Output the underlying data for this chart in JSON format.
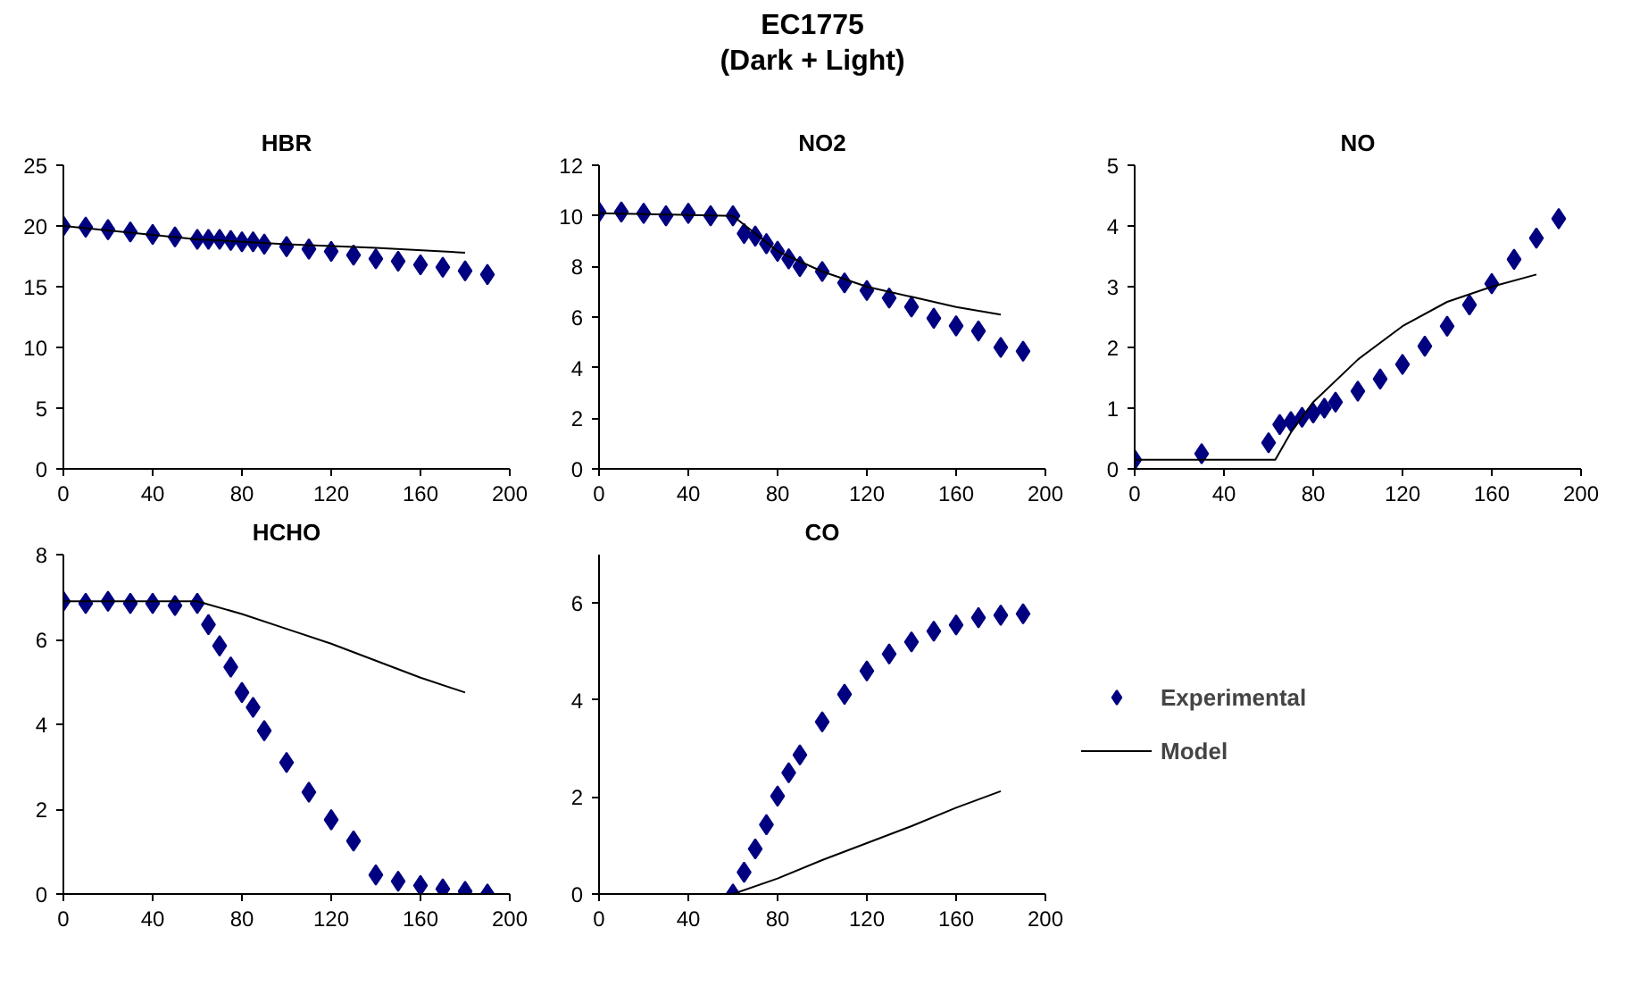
{
  "chart_data": [
    {
      "type": "other",
      "title": "EC1775\n(Dark + Light)"
    },
    {
      "type": "scatter",
      "title": "HBR",
      "xlim": [
        0,
        200
      ],
      "xticks": [
        0,
        40,
        80,
        120,
        160,
        200
      ],
      "ylim": [
        0,
        25
      ],
      "yticks": [
        0,
        5,
        10,
        15,
        20,
        25
      ],
      "grid": false,
      "series": [
        {
          "marker": "diamond",
          "color": "#000080",
          "x": [
            0,
            10,
            20,
            30,
            40,
            50,
            60,
            65,
            70,
            75,
            80,
            85,
            90,
            100,
            110,
            120,
            130,
            140,
            150,
            160,
            170,
            180,
            190
          ],
          "values": [
            20,
            19.9,
            19.7,
            19.5,
            19.3,
            19.1,
            18.9,
            18.9,
            18.9,
            18.8,
            18.7,
            18.7,
            18.5,
            18.3,
            18.1,
            17.9,
            17.6,
            17.3,
            17.1,
            16.8,
            16.6,
            16.3,
            16.0
          ]
        },
        {
          "type": "line",
          "color": "#000000",
          "line_style": "solid",
          "x": [
            0,
            60,
            100,
            140,
            180
          ],
          "values": [
            20,
            18.9,
            18.5,
            18.2,
            17.8
          ]
        }
      ]
    },
    {
      "type": "scatter",
      "title": "NO2",
      "xlim": [
        0,
        200
      ],
      "xticks": [
        0,
        40,
        80,
        120,
        160,
        200
      ],
      "ylim": [
        0,
        12
      ],
      "yticks": [
        0,
        2,
        4,
        6,
        8,
        10,
        12
      ],
      "grid": false,
      "series": [
        {
          "marker": "diamond",
          "color": "#000080",
          "x": [
            0,
            10,
            20,
            30,
            40,
            50,
            60,
            65,
            70,
            75,
            80,
            85,
            90,
            100,
            110,
            120,
            130,
            140,
            150,
            160,
            170,
            180,
            190
          ],
          "values": [
            10.15,
            10.15,
            10.1,
            10.0,
            10.1,
            10.0,
            10.0,
            9.3,
            9.2,
            8.9,
            8.6,
            8.3,
            8.0,
            7.8,
            7.35,
            7.05,
            6.75,
            6.4,
            5.95,
            5.65,
            5.45,
            4.8,
            4.65
          ]
        },
        {
          "type": "line",
          "color": "#000000",
          "line_style": "solid",
          "x": [
            0,
            60,
            80,
            100,
            120,
            140,
            160,
            180
          ],
          "values": [
            10.1,
            10.0,
            8.6,
            7.8,
            7.2,
            6.8,
            6.4,
            6.1
          ]
        }
      ]
    },
    {
      "type": "scatter",
      "title": "NO",
      "xlim": [
        0,
        200
      ],
      "xticks": [
        0,
        40,
        80,
        120,
        160,
        200
      ],
      "ylim": [
        0,
        5
      ],
      "yticks": [
        0,
        1,
        2,
        3,
        4,
        5
      ],
      "grid": false,
      "series": [
        {
          "marker": "diamond",
          "color": "#000080",
          "x": [
            0,
            30,
            60,
            65,
            70,
            75,
            80,
            85,
            90,
            100,
            110,
            120,
            130,
            140,
            150,
            160,
            170,
            180,
            190
          ],
          "values": [
            0.15,
            0.25,
            0.43,
            0.73,
            0.78,
            0.85,
            0.92,
            1.0,
            1.1,
            1.28,
            1.48,
            1.72,
            2.02,
            2.35,
            2.7,
            3.05,
            3.45,
            3.8,
            4.12
          ]
        },
        {
          "type": "line",
          "color": "#000000",
          "line_style": "solid",
          "x": [
            0,
            63,
            70,
            80,
            100,
            120,
            140,
            160,
            180
          ],
          "values": [
            0.15,
            0.15,
            0.6,
            1.1,
            1.8,
            2.35,
            2.75,
            3.0,
            3.2
          ]
        }
      ]
    },
    {
      "type": "scatter",
      "title": "HCHO",
      "xlim": [
        0,
        200
      ],
      "xticks": [
        0,
        40,
        80,
        120,
        160,
        200
      ],
      "ylim": [
        0,
        8
      ],
      "yticks": [
        0,
        2,
        4,
        6,
        8
      ],
      "grid": false,
      "series": [
        {
          "marker": "diamond",
          "color": "#000080",
          "x": [
            0,
            10,
            20,
            30,
            40,
            50,
            60,
            65,
            70,
            75,
            80,
            85,
            90,
            100,
            110,
            120,
            130,
            140,
            150,
            160,
            170,
            180,
            190
          ],
          "values": [
            6.9,
            6.85,
            6.9,
            6.85,
            6.85,
            6.8,
            6.85,
            6.35,
            5.85,
            5.35,
            4.75,
            4.4,
            3.85,
            3.1,
            2.4,
            1.75,
            1.25,
            0.45,
            0.3,
            0.2,
            0.12,
            0.06,
            0.0
          ]
        },
        {
          "type": "line",
          "color": "#000000",
          "line_style": "solid",
          "x": [
            0,
            60,
            80,
            100,
            120,
            140,
            160,
            180
          ],
          "values": [
            6.9,
            6.9,
            6.6,
            6.25,
            5.9,
            5.5,
            5.1,
            4.75
          ]
        }
      ]
    },
    {
      "type": "scatter",
      "title": "CO",
      "xlim": [
        0,
        200
      ],
      "xticks": [
        0,
        40,
        80,
        120,
        160,
        200
      ],
      "ylim": [
        0,
        7
      ],
      "yticks": [
        0,
        2,
        4,
        6
      ],
      "grid": false,
      "legend": "right",
      "series": [
        {
          "name": "Experimental",
          "marker": "diamond",
          "color": "#000080",
          "x": [
            60,
            65,
            70,
            75,
            80,
            85,
            90,
            100,
            110,
            120,
            130,
            140,
            150,
            160,
            170,
            180,
            190
          ],
          "values": [
            0,
            0.45,
            0.93,
            1.43,
            2.02,
            2.5,
            2.87,
            3.55,
            4.12,
            4.6,
            4.95,
            5.2,
            5.42,
            5.55,
            5.7,
            5.75,
            5.78
          ]
        },
        {
          "name": "Model",
          "type": "line",
          "color": "#000000",
          "line_style": "solid",
          "x": [
            0,
            60,
            80,
            100,
            120,
            140,
            160,
            180
          ],
          "values": [
            0,
            0,
            0.32,
            0.7,
            1.05,
            1.4,
            1.78,
            2.12
          ]
        }
      ]
    }
  ]
}
